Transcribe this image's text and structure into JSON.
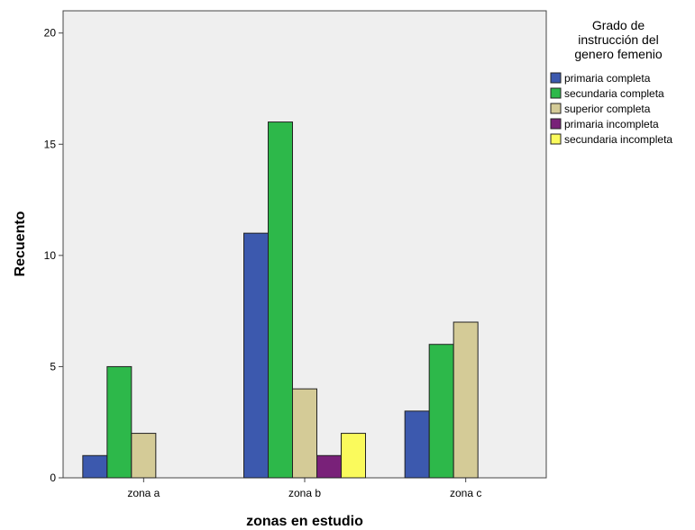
{
  "chart_data": {
    "type": "bar",
    "title": "",
    "xlabel": "zonas en estudio",
    "ylabel": "Recuento",
    "categories": [
      "zona a",
      "zona b",
      "zona c"
    ],
    "ylim": [
      0,
      21
    ],
    "yticks": [
      "0",
      "5",
      "10",
      "15",
      "20"
    ],
    "grid": false,
    "legend": {
      "title": [
        "Grado de",
        "instrucción del",
        "genero femenio"
      ],
      "placement": "right"
    },
    "series": [
      {
        "name": "primaria completa",
        "color": "#3C59AE",
        "values": [
          1,
          11,
          3
        ]
      },
      {
        "name": "secundaria completa",
        "color": "#2DB84A",
        "values": [
          5,
          16,
          6
        ]
      },
      {
        "name": "superior completa",
        "color": "#D4CB97",
        "values": [
          2,
          4,
          7
        ]
      },
      {
        "name": "primaria incompleta",
        "color": "#792179",
        "values": [
          0,
          1,
          0
        ]
      },
      {
        "name": "secundaria incompleta",
        "color": "#FAFA5C",
        "values": [
          0,
          2,
          0
        ]
      }
    ],
    "plot_background": "#EFEFEF"
  }
}
